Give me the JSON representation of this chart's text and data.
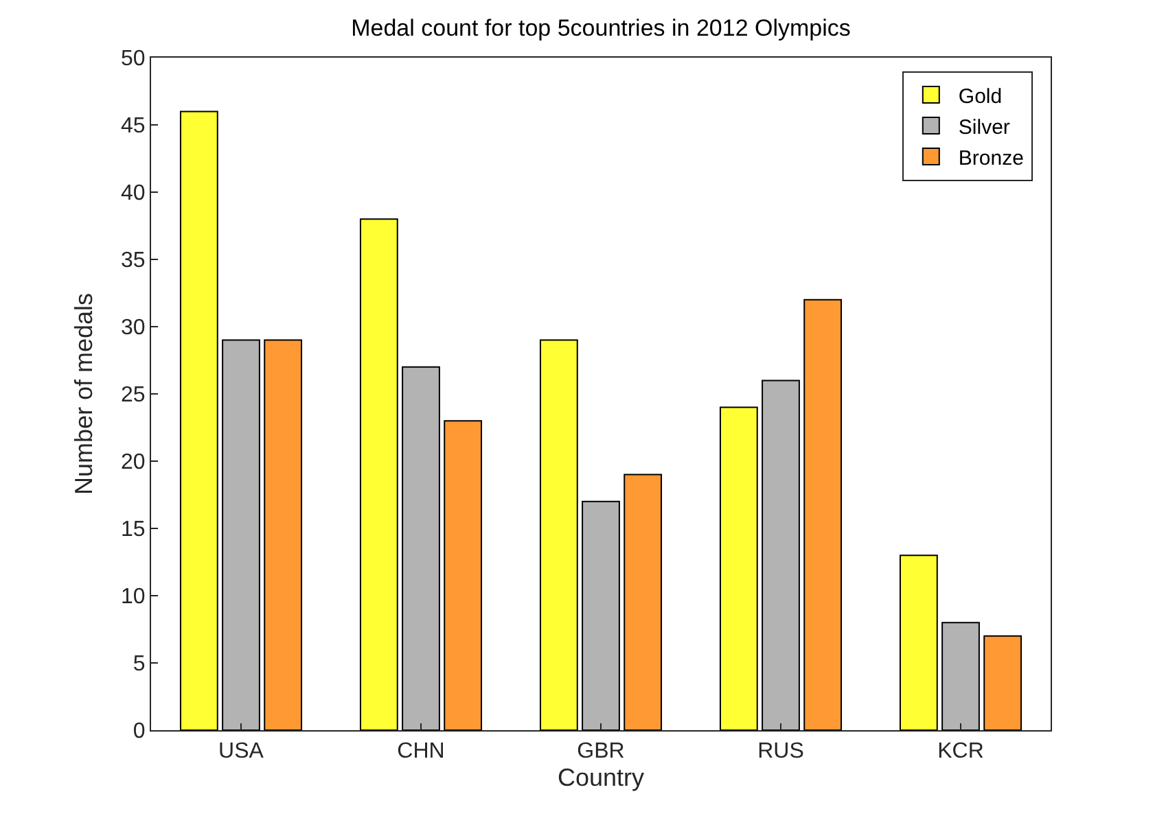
{
  "chart_data": {
    "type": "bar",
    "title": "Medal count for top 5countries in 2012 Olympics",
    "xlabel": "Country",
    "ylabel": "Number of medals",
    "categories": [
      "USA",
      "CHN",
      "GBR",
      "RUS",
      "KCR"
    ],
    "series": [
      {
        "name": "Gold",
        "color": "#ffff33",
        "values": [
          46,
          38,
          29,
          24,
          13
        ]
      },
      {
        "name": "Silver",
        "color": "#b3b3b3",
        "values": [
          29,
          27,
          17,
          26,
          8
        ]
      },
      {
        "name": "Bronze",
        "color": "#ff9933",
        "values": [
          29,
          23,
          19,
          32,
          7
        ]
      }
    ],
    "ylim": [
      0,
      50
    ],
    "yticks": [
      0,
      5,
      10,
      15,
      20,
      25,
      30,
      35,
      40,
      45,
      50
    ],
    "legend": "top right"
  }
}
